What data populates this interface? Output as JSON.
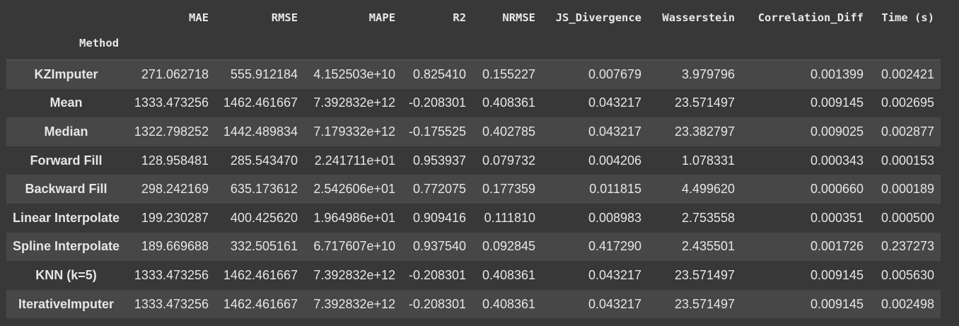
{
  "table": {
    "index_name": "Method",
    "columns": [
      "MAE",
      "RMSE",
      "MAPE",
      "R2",
      "NRMSE",
      "JS_Divergence",
      "Wasserstein",
      "Correlation_Diff",
      "Time (s)"
    ],
    "rows": [
      {
        "method": "KZImputer",
        "values": [
          "271.062718",
          "555.912184",
          "4.152503e+10",
          "0.825410",
          "0.155227",
          "0.007679",
          "3.979796",
          "0.001399",
          "0.002421"
        ]
      },
      {
        "method": "Mean",
        "values": [
          "1333.473256",
          "1462.461667",
          "7.392832e+12",
          "-0.208301",
          "0.408361",
          "0.043217",
          "23.571497",
          "0.009145",
          "0.002695"
        ]
      },
      {
        "method": "Median",
        "values": [
          "1322.798252",
          "1442.489834",
          "7.179332e+12",
          "-0.175525",
          "0.402785",
          "0.043217",
          "23.382797",
          "0.009025",
          "0.002877"
        ]
      },
      {
        "method": "Forward Fill",
        "values": [
          "128.958481",
          "285.543470",
          "2.241711e+01",
          "0.953937",
          "0.079732",
          "0.004206",
          "1.078331",
          "0.000343",
          "0.000153"
        ]
      },
      {
        "method": "Backward Fill",
        "values": [
          "298.242169",
          "635.173612",
          "2.542606e+01",
          "0.772075",
          "0.177359",
          "0.011815",
          "4.499620",
          "0.000660",
          "0.000189"
        ]
      },
      {
        "method": "Linear Interpolate",
        "values": [
          "199.230287",
          "400.425620",
          "1.964986e+01",
          "0.909416",
          "0.111810",
          "0.008983",
          "2.753558",
          "0.000351",
          "0.000500"
        ]
      },
      {
        "method": "Spline Interpolate",
        "values": [
          "189.669688",
          "332.505161",
          "6.717607e+10",
          "0.937540",
          "0.092845",
          "0.417290",
          "2.435501",
          "0.001726",
          "0.237273"
        ]
      },
      {
        "method": "KNN (k=5)",
        "values": [
          "1333.473256",
          "1462.461667",
          "7.392832e+12",
          "-0.208301",
          "0.408361",
          "0.043217",
          "23.571497",
          "0.009145",
          "0.005630"
        ]
      },
      {
        "method": "IterativeImputer",
        "values": [
          "1333.473256",
          "1462.461667",
          "7.392832e+12",
          "-0.208301",
          "0.408361",
          "0.043217",
          "23.571497",
          "0.009145",
          "0.002498"
        ]
      }
    ]
  }
}
